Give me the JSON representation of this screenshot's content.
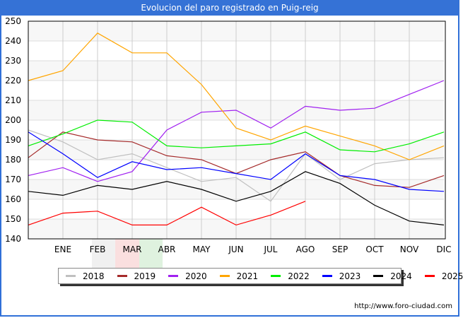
{
  "title": "Evolucion del paro registrado en Puig-reig",
  "credit": "http://www.foro-ciudad.com",
  "chart_data": {
    "type": "line",
    "title": "Evolucion del paro registrado en Puig-reig",
    "xlabel": "",
    "ylabel": "",
    "x": [
      "",
      "ENE",
      "FEB",
      "MAR",
      "ABR",
      "MAY",
      "JUN",
      "JUL",
      "AGO",
      "SEP",
      "OCT",
      "NOV",
      "DIC"
    ],
    "ylim": [
      140,
      250
    ],
    "yticks": [
      140,
      150,
      160,
      170,
      180,
      190,
      200,
      210,
      220,
      230,
      240,
      250
    ],
    "grid": true,
    "legend_position": "bottom",
    "series": [
      {
        "name": "2018",
        "color": "#c0c0c0",
        "values": [
          195,
          189,
          180,
          183,
          176,
          169,
          171,
          159,
          183,
          170,
          178,
          180,
          181
        ]
      },
      {
        "name": "2019",
        "color": "#a52a2a",
        "values": [
          181,
          194,
          190,
          189,
          182,
          180,
          173,
          180,
          184,
          172,
          167,
          166,
          172
        ]
      },
      {
        "name": "2020",
        "color": "#a020f0",
        "values": [
          172,
          176,
          169,
          174,
          195,
          204,
          205,
          196,
          207,
          205,
          206,
          213,
          220
        ]
      },
      {
        "name": "2021",
        "color": "#ffa500",
        "values": [
          220,
          225,
          244,
          234,
          234,
          218,
          196,
          190,
          197,
          192,
          187,
          180,
          187
        ]
      },
      {
        "name": "2022",
        "color": "#00ee00",
        "values": [
          187,
          193,
          200,
          199,
          187,
          186,
          187,
          188,
          194,
          185,
          184,
          188,
          194
        ]
      },
      {
        "name": "2023",
        "color": "#0000ff",
        "values": [
          194,
          183,
          171,
          179,
          175,
          176,
          173,
          170,
          183,
          172,
          170,
          165,
          164
        ]
      },
      {
        "name": "2024",
        "color": "#000000",
        "values": [
          164,
          162,
          167,
          165,
          169,
          165,
          159,
          164,
          174,
          168,
          157,
          149,
          147
        ]
      },
      {
        "name": "2025",
        "color": "#ff0000",
        "values": [
          147,
          153,
          154,
          147,
          147,
          156,
          147,
          152,
          159
        ]
      }
    ]
  }
}
